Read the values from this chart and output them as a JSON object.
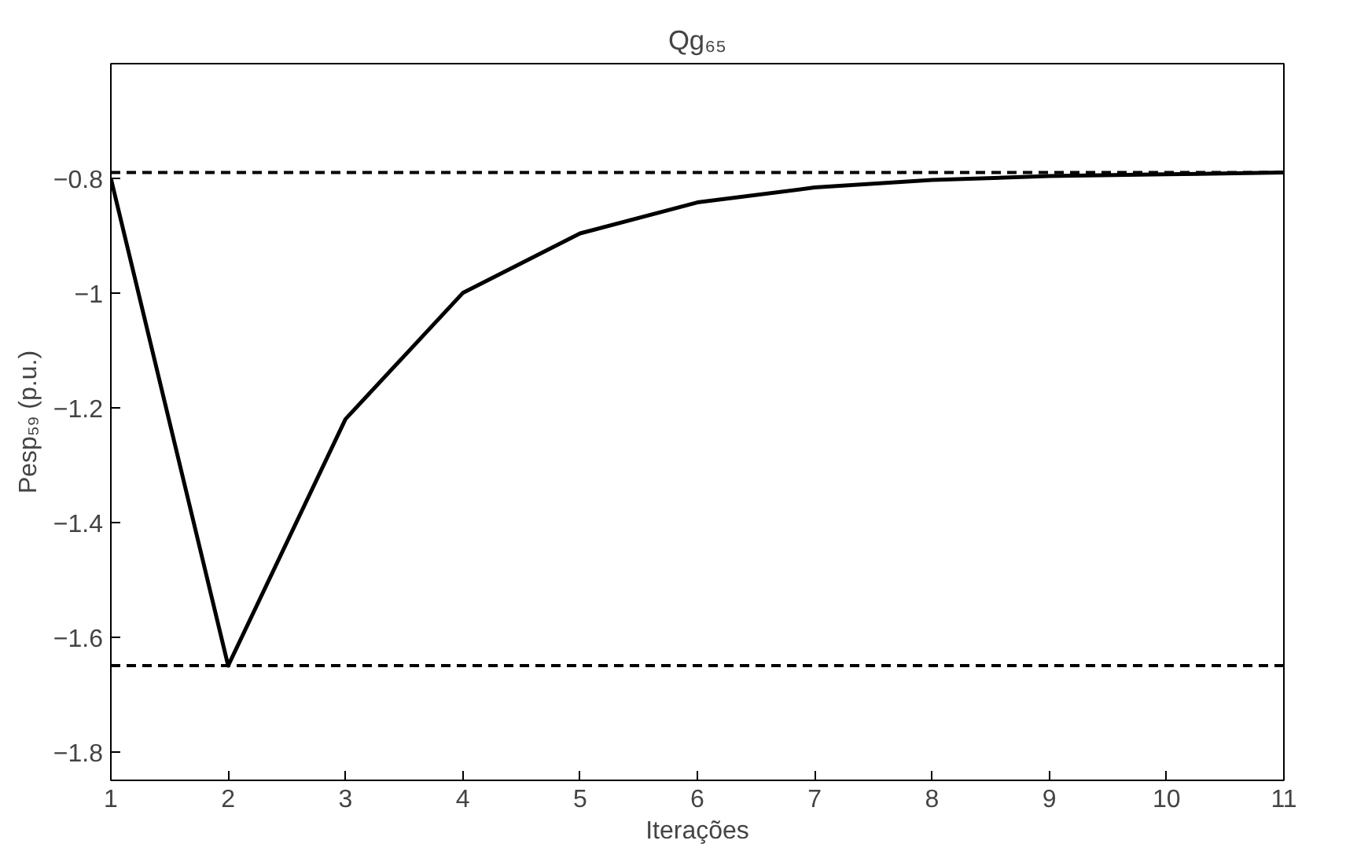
{
  "chart_data": {
    "type": "line",
    "title": "Qg₆₅",
    "xlabel": "Iterações",
    "ylabel": "Pesp₅₉ (p.u.)",
    "x": [
      1,
      2,
      3,
      4,
      5,
      6,
      7,
      8,
      9,
      10,
      11
    ],
    "series": [
      {
        "color": "#000000",
        "values": [
          -0.8,
          -1.65,
          -1.22,
          -1.0,
          -0.896,
          -0.842,
          -0.816,
          -0.803,
          -0.796,
          -0.793,
          -0.79
        ]
      }
    ],
    "xlim": [
      1,
      11
    ],
    "xticks": [
      1,
      2,
      3,
      4,
      5,
      6,
      7,
      8,
      9,
      10,
      11
    ],
    "ylim": [
      -1.85,
      -0.6
    ],
    "yticks": [
      -1.8,
      -1.6,
      -1.4,
      -1.2,
      -1,
      -0.8
    ],
    "ref_lines": [
      {
        "axis": "y",
        "value": -0.79,
        "color": "#000000",
        "line_style": "dashed"
      },
      {
        "axis": "y",
        "value": -1.65,
        "color": "#000000",
        "line_style": "dashed"
      }
    ],
    "grid": false,
    "marker": "none",
    "line_style": "solid"
  }
}
